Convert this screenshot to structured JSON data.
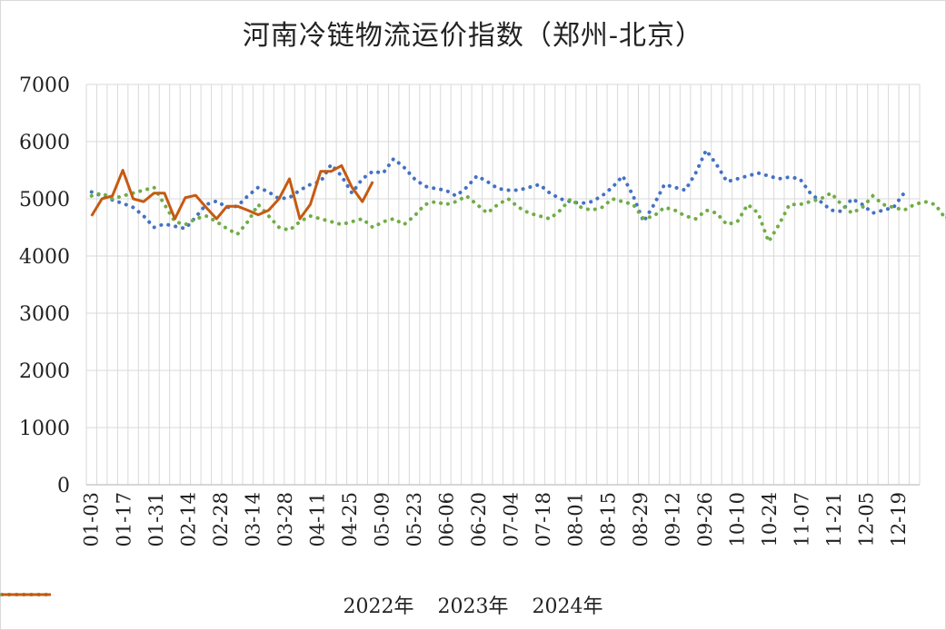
{
  "chart_data": {
    "type": "line",
    "title": "河南冷链物流运价指数（郑州-北京）",
    "xlabel": "",
    "ylabel": "",
    "ylim": [
      0,
      7000
    ],
    "yticks": [
      0,
      1000,
      2000,
      3000,
      4000,
      5000,
      6000,
      7000
    ],
    "x_tick_labels": [
      "01-03",
      "01-17",
      "01-31",
      "02-14",
      "02-28",
      "03-14",
      "03-28",
      "04-11",
      "04-25",
      "05-09",
      "05-23",
      "06-06",
      "06-20",
      "07-04",
      "07-18",
      "08-01",
      "08-15",
      "08-29",
      "09-12",
      "09-26",
      "10-10",
      "10-24",
      "11-07",
      "11-21",
      "12-05",
      "12-19"
    ],
    "grid": true,
    "legend": "bottom",
    "series": [
      {
        "name": "2022年",
        "style": "dotted",
        "color": "#4472C4",
        "values": [
          5120,
          5050,
          4980,
          4920,
          4850,
          4700,
          4500,
          4560,
          4520,
          4480,
          4680,
          4900,
          4960,
          4850,
          4870,
          5050,
          5200,
          5120,
          5000,
          5020,
          5150,
          5250,
          5300,
          5600,
          5400,
          5100,
          5350,
          5480,
          5450,
          5700,
          5550,
          5350,
          5220,
          5180,
          5150,
          5050,
          5200,
          5400,
          5300,
          5180,
          5150,
          5150,
          5200,
          5250,
          5100,
          5000,
          4950,
          4920,
          4950,
          5050,
          5200,
          5400,
          5050,
          4600,
          4900,
          5250,
          5200,
          5150,
          5450,
          5850,
          5600,
          5300,
          5350,
          5400,
          5450,
          5400,
          5350,
          5380,
          5350,
          5100,
          4950,
          4800,
          4780,
          5000,
          4900,
          4750,
          4800,
          4850,
          5100
        ]
      },
      {
        "name": "2023年",
        "style": "dotted",
        "color": "#70AD47",
        "values": [
          5050,
          5100,
          5000,
          5050,
          5100,
          5150,
          5200,
          4900,
          4600,
          4550,
          4650,
          4700,
          4600,
          4480,
          4380,
          4600,
          4900,
          4700,
          4500,
          4450,
          4600,
          4700,
          4650,
          4600,
          4550,
          4600,
          4650,
          4500,
          4600,
          4650,
          4550,
          4700,
          4900,
          4950,
          4900,
          4950,
          5050,
          4900,
          4750,
          4900,
          5000,
          4850,
          4750,
          4700,
          4650,
          4800,
          5000,
          4850,
          4800,
          4850,
          5000,
          4950,
          4900,
          4650,
          4700,
          4850,
          4800,
          4700,
          4650,
          4800,
          4750,
          4550,
          4600,
          4900,
          4750,
          4250,
          4550,
          4900,
          4900,
          4950,
          5000,
          5100,
          4900,
          4750,
          4850,
          5050,
          4900,
          4850,
          4800,
          4900,
          4950,
          4900,
          4650,
          4800,
          4850,
          4900,
          4950,
          4950,
          5000
        ]
      },
      {
        "name": "2024年",
        "style": "solid",
        "color": "#C55A11",
        "values": [
          4700,
          5000,
          5050,
          5500,
          5000,
          4950,
          5100,
          5100,
          4650,
          5020,
          5060,
          4850,
          4650,
          4870,
          4870,
          4800,
          4720,
          4800,
          5000,
          5350,
          4650,
          4900,
          5480,
          5480,
          5580,
          5200,
          4950,
          5300
        ]
      }
    ]
  }
}
